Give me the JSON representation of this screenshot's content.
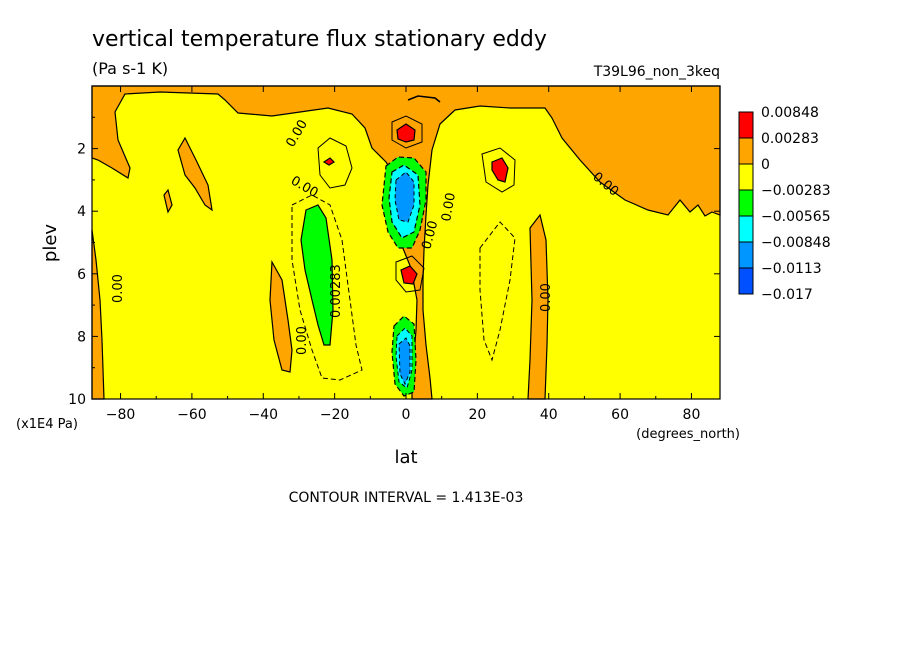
{
  "chart_data": {
    "type": "heatmap",
    "title": "vertical temperature flux stationary eddy",
    "subtitle": "(Pa s-1 K)",
    "run_label": "T39L96_non_3keq",
    "xlabel": "lat",
    "x_units": "(degrees_north)",
    "ylabel": "plev",
    "y_units": "(x1E4 Pa)",
    "xlim": [
      -88,
      88
    ],
    "ylim": [
      10,
      0
    ],
    "x_ticks": [
      "-80",
      "-60",
      "-40",
      "-20",
      "0",
      "20",
      "40",
      "60",
      "80"
    ],
    "y_ticks": [
      "2",
      "4",
      "6",
      "8",
      "10"
    ],
    "footer": "CONTOUR INTERVAL = 1.413E-03",
    "legend": {
      "placement": "right",
      "colors": [
        "#ff0000",
        "#ffa500",
        "#ffff00",
        "#00ff00",
        "#00ffff",
        "#0096ff",
        "#0050ff"
      ],
      "labels": [
        "0.00848",
        "0.00283",
        "0",
        "−0.00283",
        "−0.00565",
        "−0.00848",
        "−0.0113",
        "−0.017"
      ]
    },
    "contour_labels": [
      "0.00",
      "0.00",
      "0.00",
      "0.00",
      "0.00",
      "0.00",
      "0.00",
      "0.00283",
      "0.00"
    ],
    "background_color": "#ffff00",
    "grid": false
  }
}
